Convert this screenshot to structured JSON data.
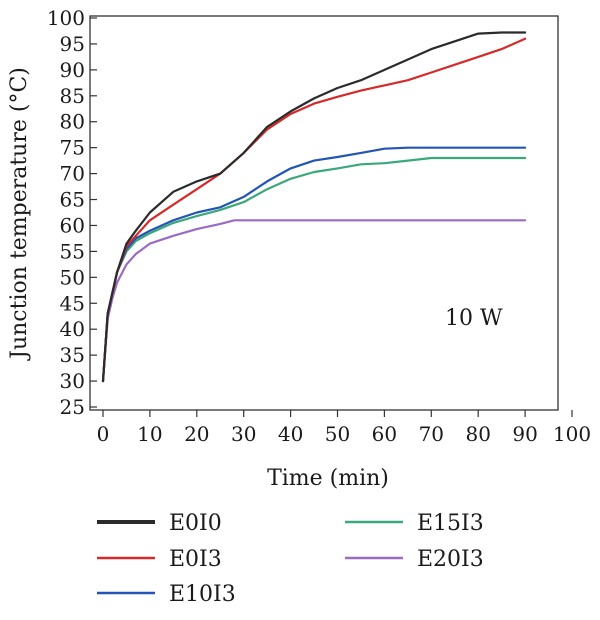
{
  "chart_data": {
    "type": "line",
    "title": "",
    "xlabel": "Time (min)",
    "ylabel": "Junction temperature (°C)",
    "xlim": [
      0,
      100
    ],
    "ylim": [
      25,
      100
    ],
    "xticks": [
      0,
      10,
      20,
      30,
      40,
      50,
      60,
      70,
      80,
      90,
      100
    ],
    "yticks": [
      25,
      30,
      35,
      40,
      45,
      50,
      55,
      60,
      65,
      70,
      75,
      80,
      85,
      90,
      95,
      100
    ],
    "grid": false,
    "legend_position": "bottom",
    "annotation": "10 W",
    "series": [
      {
        "name": "E0I0",
        "color": "#2b2b2b",
        "points": [
          [
            0,
            30
          ],
          [
            1,
            43
          ],
          [
            2,
            47
          ],
          [
            3,
            51
          ],
          [
            5,
            56.5
          ],
          [
            7,
            59
          ],
          [
            10,
            62.5
          ],
          [
            15,
            66.5
          ],
          [
            20,
            68.5
          ],
          [
            25,
            70
          ],
          [
            30,
            74
          ],
          [
            35,
            79
          ],
          [
            40,
            82
          ],
          [
            45,
            84.5
          ],
          [
            50,
            86.5
          ],
          [
            55,
            88
          ],
          [
            60,
            90
          ],
          [
            65,
            92
          ],
          [
            70,
            94
          ],
          [
            75,
            95.5
          ],
          [
            80,
            97
          ],
          [
            85,
            97.2
          ],
          [
            90,
            97.2
          ]
        ]
      },
      {
        "name": "E0I3",
        "color": "#d42a2a",
        "points": [
          [
            0,
            30
          ],
          [
            1,
            43
          ],
          [
            2,
            47
          ],
          [
            3,
            51
          ],
          [
            5,
            56
          ],
          [
            7,
            58
          ],
          [
            10,
            61
          ],
          [
            15,
            64
          ],
          [
            20,
            67
          ],
          [
            25,
            70
          ],
          [
            30,
            74
          ],
          [
            35,
            78.5
          ],
          [
            40,
            81.5
          ],
          [
            45,
            83.5
          ],
          [
            50,
            84.8
          ],
          [
            55,
            86
          ],
          [
            60,
            87
          ],
          [
            65,
            88
          ],
          [
            70,
            89.5
          ],
          [
            75,
            91
          ],
          [
            80,
            92.5
          ],
          [
            85,
            94
          ],
          [
            90,
            96
          ]
        ]
      },
      {
        "name": "E10I3",
        "color": "#2255b5",
        "points": [
          [
            0,
            30
          ],
          [
            1,
            43
          ],
          [
            2,
            47
          ],
          [
            3,
            51
          ],
          [
            5,
            55.5
          ],
          [
            7,
            57.5
          ],
          [
            10,
            59
          ],
          [
            15,
            61
          ],
          [
            20,
            62.5
          ],
          [
            25,
            63.5
          ],
          [
            30,
            65.5
          ],
          [
            35,
            68.5
          ],
          [
            40,
            71
          ],
          [
            45,
            72.5
          ],
          [
            50,
            73.2
          ],
          [
            55,
            74
          ],
          [
            60,
            74.8
          ],
          [
            65,
            75
          ],
          [
            70,
            75
          ],
          [
            80,
            75
          ],
          [
            90,
            75
          ]
        ]
      },
      {
        "name": "E15I3",
        "color": "#3aa87a",
        "points": [
          [
            0,
            30
          ],
          [
            1,
            43
          ],
          [
            2,
            47
          ],
          [
            3,
            51
          ],
          [
            5,
            55
          ],
          [
            7,
            57
          ],
          [
            10,
            58.5
          ],
          [
            15,
            60.5
          ],
          [
            20,
            61.8
          ],
          [
            25,
            63
          ],
          [
            30,
            64.5
          ],
          [
            35,
            67
          ],
          [
            40,
            69
          ],
          [
            45,
            70.3
          ],
          [
            50,
            71
          ],
          [
            55,
            71.8
          ],
          [
            60,
            72
          ],
          [
            65,
            72.5
          ],
          [
            70,
            73
          ],
          [
            80,
            73
          ],
          [
            90,
            73
          ]
        ]
      },
      {
        "name": "E20I3",
        "color": "#9a6bc4",
        "points": [
          [
            0,
            30
          ],
          [
            1,
            42
          ],
          [
            2,
            46
          ],
          [
            3,
            49
          ],
          [
            5,
            52.5
          ],
          [
            7,
            54.5
          ],
          [
            10,
            56.5
          ],
          [
            15,
            58
          ],
          [
            20,
            59.3
          ],
          [
            25,
            60.3
          ],
          [
            28,
            61
          ],
          [
            35,
            61
          ],
          [
            50,
            61
          ],
          [
            70,
            61
          ],
          [
            90,
            61
          ]
        ]
      }
    ]
  }
}
